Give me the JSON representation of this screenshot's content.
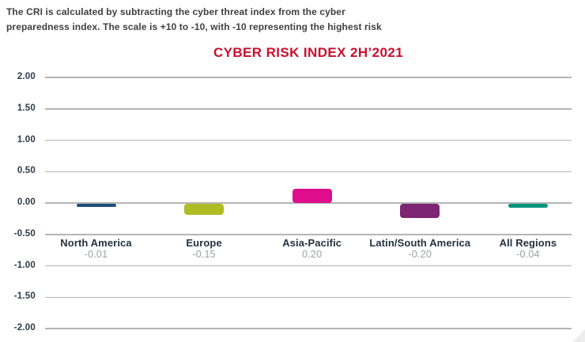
{
  "description": {
    "line1": "The CRI is calculated by subtracting the cyber threat index from the cyber",
    "line2": "preparedness index. The scale is +10 to -10, with -10 representing the highest risk"
  },
  "chart_data": {
    "type": "bar",
    "title": "CYBER RISK INDEX 2H’2021",
    "title_color": "#c8102e",
    "categories": [
      "North America",
      "Europe",
      "Asia-Pacific",
      "Latin/South America",
      "All Regions"
    ],
    "values": [
      -0.01,
      -0.15,
      0.2,
      -0.2,
      -0.04
    ],
    "value_labels": [
      "-0.01",
      "-0.15",
      "0.20",
      "-0.20",
      "-0.04"
    ],
    "bar_colors": [
      "#1f4e79",
      "#aebd23",
      "#df0d8c",
      "#7d2472",
      "#00947c"
    ],
    "xlabel": "",
    "ylabel": "",
    "ylim": [
      -2.0,
      2.0
    ],
    "ytick_step": 0.5,
    "yticks": [
      "2.00",
      "1.50",
      "1.00",
      "0.50",
      "0.00",
      "-0.50",
      "-1.00",
      "-1.50",
      "-2.00"
    ],
    "grid": true,
    "gridline_color": "#b5b5b5",
    "legend": "none",
    "value_label_color": "#9ba1a6",
    "category_label_color": "#24323e"
  }
}
